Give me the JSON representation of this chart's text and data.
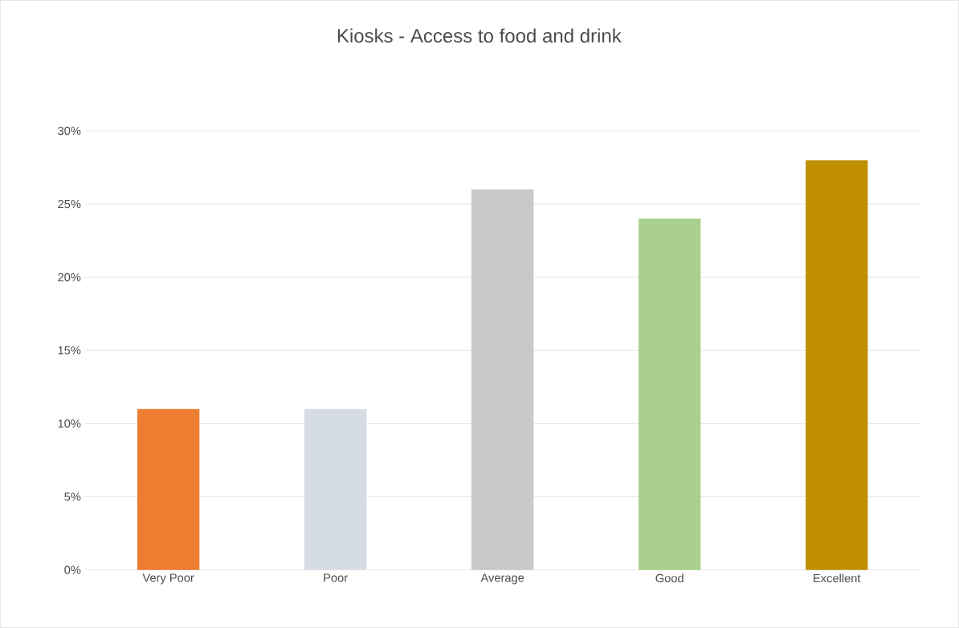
{
  "chart_data": {
    "type": "bar",
    "title": "Kiosks - Access to food and drink",
    "categories": [
      "Very Poor",
      "Poor",
      "Average",
      "Good",
      "Excellent"
    ],
    "values": [
      11,
      11,
      26,
      24,
      28
    ],
    "colors": [
      "#ed7d31",
      "#d6dce4",
      "#c9c9c9",
      "#a9d08e",
      "#bf8f00"
    ],
    "ylim": [
      0,
      30
    ],
    "yticks": [
      {
        "value": 0,
        "label": "0%"
      },
      {
        "value": 5,
        "label": "5%"
      },
      {
        "value": 10,
        "label": "10%"
      },
      {
        "value": 15,
        "label": "15%"
      },
      {
        "value": 20,
        "label": "20%"
      },
      {
        "value": 25,
        "label": "25%"
      },
      {
        "value": 30,
        "label": "30%"
      }
    ],
    "grid": "y"
  }
}
